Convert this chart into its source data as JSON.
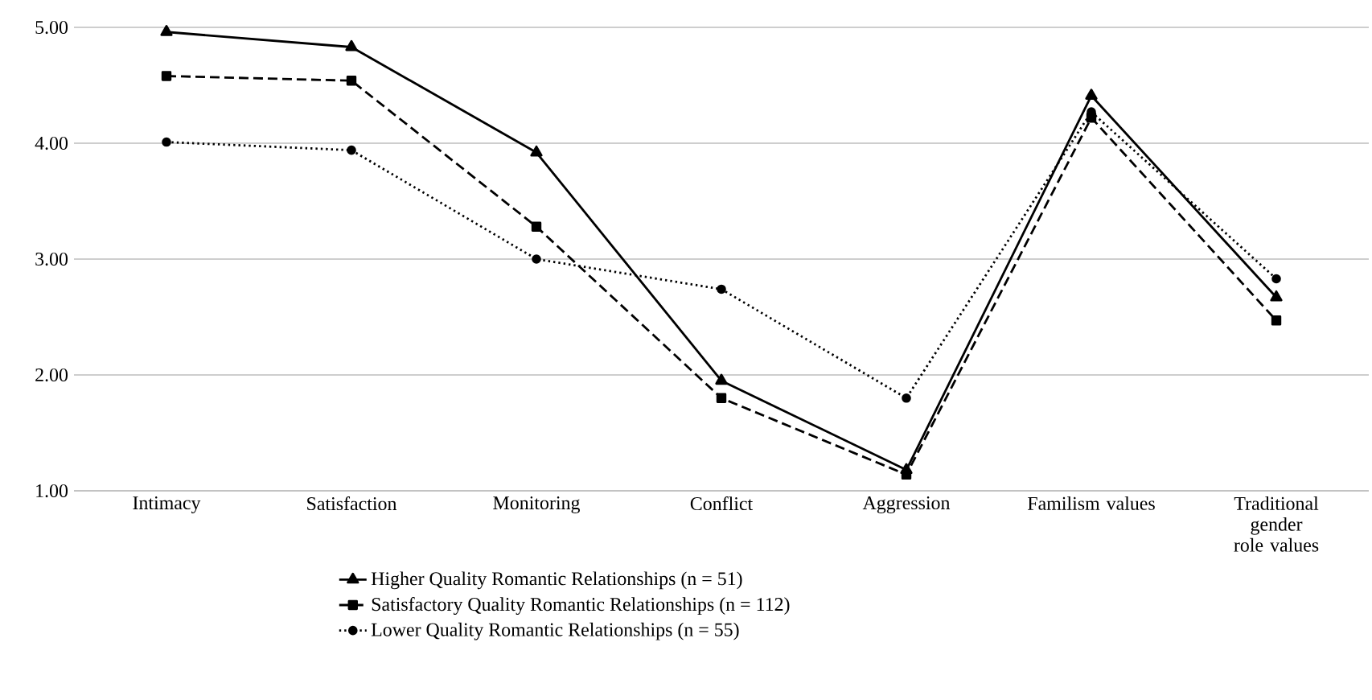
{
  "chart_data": {
    "type": "line",
    "categories": [
      "Intimacy",
      "Satisfaction",
      "Monitoring",
      "Conflict",
      "Aggression",
      "Familism values",
      "Traditional gender role values"
    ],
    "series": [
      {
        "name": "Higher Quality Romantic Relationships (n = 51)",
        "color": "#000000",
        "marker": "triangle",
        "line_style": "solid",
        "values": [
          4.96,
          4.83,
          3.92,
          1.95,
          1.18,
          4.41,
          2.67
        ]
      },
      {
        "name": "Satisfactory Quality Romantic Relationships (n = 112)",
        "color": "#000000",
        "marker": "square",
        "line_style": "dashed",
        "values": [
          4.58,
          4.54,
          3.28,
          1.8,
          1.14,
          4.22,
          2.47
        ]
      },
      {
        "name": "Lower Quality Romantic Relationships (n = 55)",
        "color": "#000000",
        "marker": "circle",
        "line_style": "dotted",
        "values": [
          4.01,
          3.94,
          3.0,
          2.74,
          1.8,
          4.27,
          2.83
        ]
      }
    ],
    "ylim": [
      1,
      5
    ],
    "yticks": [
      {
        "value": 1,
        "label": "1.00"
      },
      {
        "value": 2,
        "label": "2.00"
      },
      {
        "value": 3,
        "label": "3.00"
      },
      {
        "value": 4,
        "label": "4.00"
      },
      {
        "value": 5,
        "label": "5.00"
      }
    ],
    "grid": "y",
    "legend": "bottom"
  }
}
